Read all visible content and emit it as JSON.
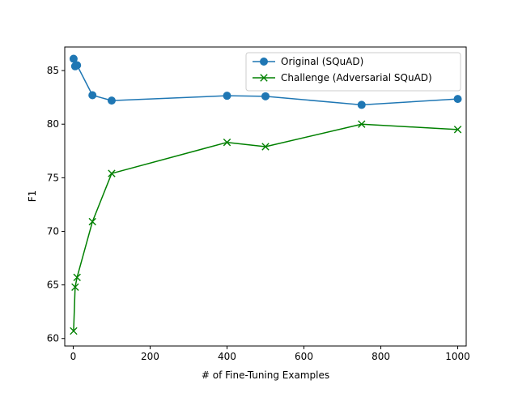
{
  "chart_data": {
    "type": "line",
    "title": "",
    "xlabel": "# of Fine-Tuning Examples",
    "ylabel": "F1",
    "xlim": [
      -22,
      1022
    ],
    "ylim": [
      59.3,
      87.2
    ],
    "xticks": [
      0,
      200,
      400,
      600,
      800,
      1000
    ],
    "yticks": [
      60,
      65,
      70,
      75,
      80,
      85
    ],
    "grid": false,
    "legend_position": "upper right",
    "series": [
      {
        "name": "Original (SQuAD)",
        "color": "#1f77b4",
        "marker": "circle",
        "x": [
          1,
          5,
          10,
          50,
          100,
          400,
          500,
          750,
          1000
        ],
        "y": [
          86.1,
          85.4,
          85.5,
          82.7,
          82.2,
          82.65,
          82.6,
          81.8,
          82.35
        ]
      },
      {
        "name": "Challenge (Adversarial SQuAD)",
        "color": "#008000",
        "marker": "x",
        "x": [
          1,
          5,
          10,
          50,
          100,
          400,
          500,
          750,
          1000
        ],
        "y": [
          60.7,
          64.8,
          65.7,
          70.9,
          75.4,
          78.3,
          77.9,
          80.0,
          79.5
        ]
      }
    ]
  }
}
